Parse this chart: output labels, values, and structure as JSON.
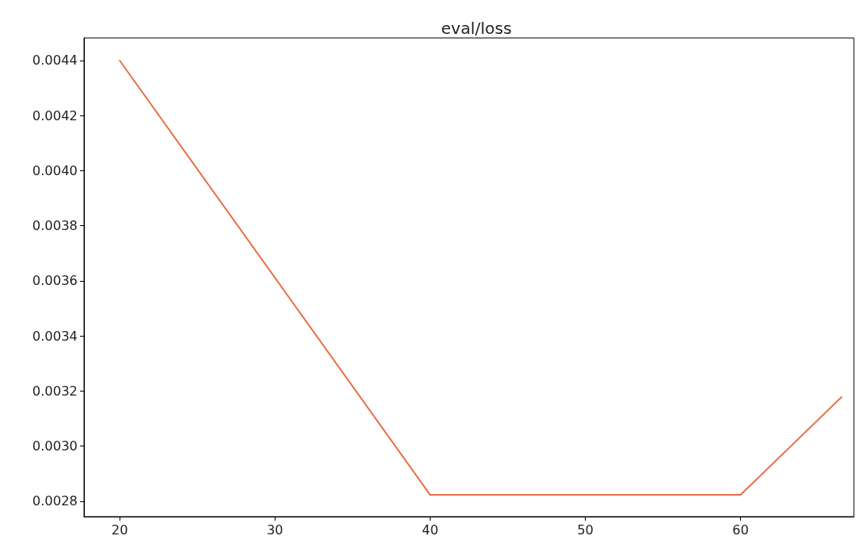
{
  "chart_data": {
    "type": "line",
    "title": "eval/loss",
    "x": [
      20,
      40,
      60,
      66.5
    ],
    "series": [
      {
        "color": "#e8704a",
        "values": [
          0.0044,
          0.002823,
          0.002823,
          0.003178
        ]
      }
    ],
    "xlim": [
      17.7,
      67.3
    ],
    "xticks": [
      20,
      30,
      40,
      50,
      60
    ],
    "ylim": [
      0.002744,
      0.004482
    ],
    "yticks": [
      {
        "value": 0.0028,
        "label": "0.0028"
      },
      {
        "value": 0.003,
        "label": "0.0030"
      },
      {
        "value": 0.0032,
        "label": "0.0032"
      },
      {
        "value": 0.0034,
        "label": "0.0034"
      },
      {
        "value": 0.0036,
        "label": "0.0036"
      },
      {
        "value": 0.0038,
        "label": "0.0038"
      },
      {
        "value": 0.004,
        "label": "0.0040"
      },
      {
        "value": 0.0042,
        "label": "0.0042"
      },
      {
        "value": 0.0044,
        "label": "0.0044"
      }
    ],
    "grid": false,
    "marker": "none",
    "line_style": "solid"
  }
}
